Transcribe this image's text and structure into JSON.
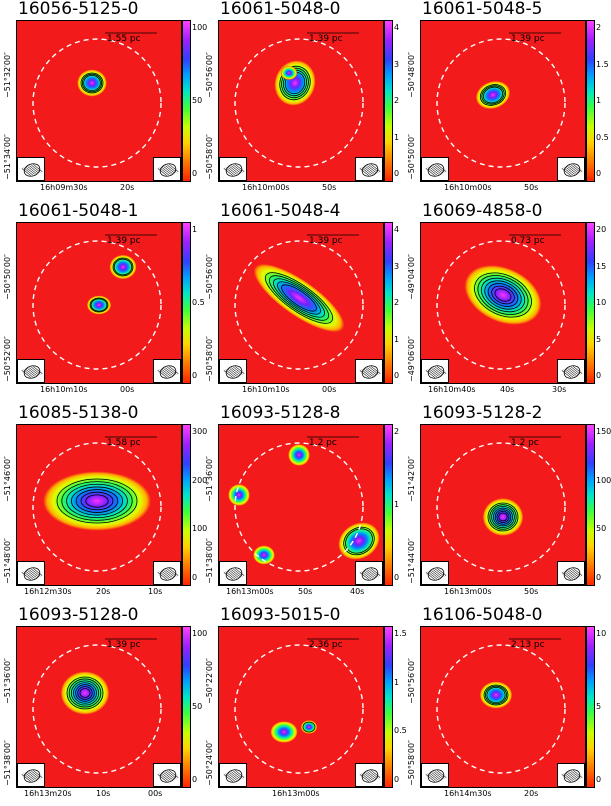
{
  "panels": [
    {
      "title": "16056-5125-0",
      "scale": "1.55 pc",
      "yticks": [
        "−51°32′00″",
        "−51°34′00″"
      ],
      "xticks": [
        "16h09m30s",
        "20s"
      ],
      "cbar": [
        "100",
        "50",
        "0"
      ]
    },
    {
      "title": "16061-5048-0",
      "scale": "1.39 pc",
      "yticks": [
        "−50°56′00″",
        "−50°58′00″"
      ],
      "xticks": [
        "16h10m00s",
        "50s"
      ],
      "cbar": [
        "4",
        "3",
        "2",
        "1",
        "0"
      ]
    },
    {
      "title": "16061-5048-5",
      "scale": "1.39 pc",
      "yticks": [
        "−50°48′00″",
        "−50°50′00″"
      ],
      "xticks": [
        "16h10m00s",
        "50s"
      ],
      "cbar": [
        "2",
        "1.5",
        "1",
        "0.5",
        "0"
      ]
    },
    {
      "title": "16061-5048-1",
      "scale": "1.39 pc",
      "yticks": [
        "−50°50′00″",
        "−50°52′00″"
      ],
      "xticks": [
        "16h10m10s",
        "00s"
      ],
      "cbar": [
        "1",
        "0.5",
        "0"
      ]
    },
    {
      "title": "16061-5048-4",
      "scale": "1.39 pc",
      "yticks": [
        "−50°56′00″",
        "−50°58′00″"
      ],
      "xticks": [
        "16h10m10s",
        "00s"
      ],
      "cbar": [
        "4",
        "3",
        "2",
        "1",
        "0"
      ]
    },
    {
      "title": "16069-4858-0",
      "scale": "0.73 pc",
      "yticks": [
        "−49°04′00″",
        "−49°06′00″"
      ],
      "xticks": [
        "16h10m40s",
        "40s",
        "30s"
      ],
      "cbar": [
        "20",
        "15",
        "10",
        "5",
        "0"
      ]
    },
    {
      "title": "16085-5138-0",
      "scale": "1.58 pc",
      "yticks": [
        "−51°46′00″",
        "−51°48′00″"
      ],
      "xticks": [
        "16h12m30s",
        "20s",
        "10s"
      ],
      "cbar": [
        "300",
        "200",
        "100",
        "0"
      ]
    },
    {
      "title": "16093-5128-8",
      "scale": "1.2 pc",
      "yticks": [
        "−51°36′00″",
        "−51°38′00″"
      ],
      "xticks": [
        "16h13m00s",
        "50s",
        "40s"
      ],
      "cbar": [
        "2",
        "1",
        "0"
      ]
    },
    {
      "title": "16093-5128-2",
      "scale": "1.2 pc",
      "yticks": [
        "−51°42′00″",
        "−51°44′00″"
      ],
      "xticks": [
        "16h13m00s",
        "50s"
      ],
      "cbar": [
        "150",
        "100",
        "50",
        "0"
      ]
    },
    {
      "title": "16093-5128-0",
      "scale": "1.39 pc",
      "yticks": [
        "−51°36′00″",
        "−51°38′00″"
      ],
      "xticks": [
        "16h13m20s",
        "10s",
        "00s"
      ],
      "cbar": [
        "100",
        "50",
        "0"
      ]
    },
    {
      "title": "16093-5015-0",
      "scale": "2.36 pc",
      "yticks": [
        "−50°22′00″",
        "−50°24′00″"
      ],
      "xticks": [
        "16h13m00s"
      ],
      "cbar": [
        "1.5",
        "1",
        "0.5",
        "0"
      ]
    },
    {
      "title": "16106-5048-0",
      "scale": "2.13 pc",
      "yticks": [
        "−50°56′00″",
        "−50°58′00″"
      ],
      "xticks": [
        "16h14m30s",
        "20s"
      ],
      "cbar": [
        "10",
        "5",
        "0"
      ]
    }
  ]
}
